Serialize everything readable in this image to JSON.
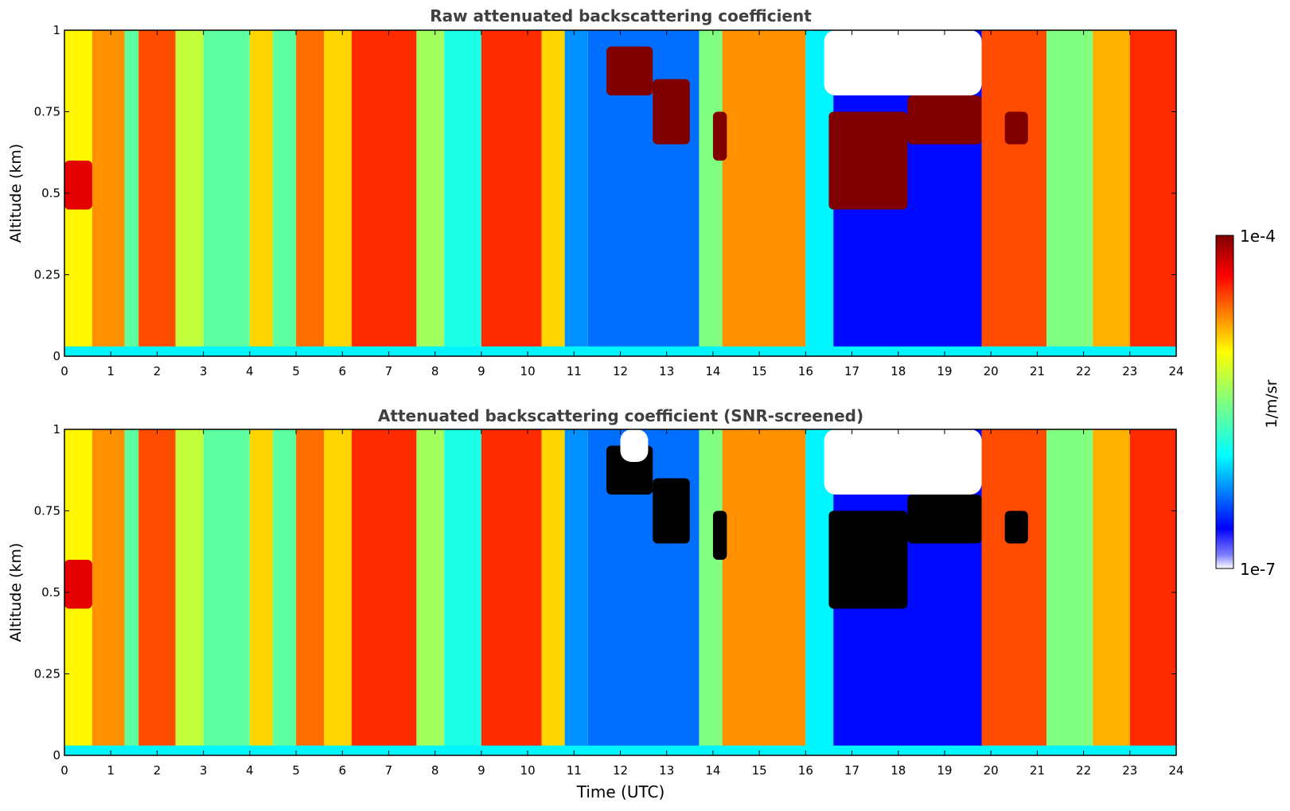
{
  "chart_data": {
    "type": "heatmap",
    "colorbar": {
      "label": "1/m/sr",
      "min_label": "1e-7",
      "max_label": "1e-4",
      "min": 1e-07,
      "max": 0.0001,
      "scale": "log",
      "colormap": "jet"
    },
    "xlabel": "Time (UTC)",
    "x_ticks": [
      "0",
      "1",
      "2",
      "3",
      "4",
      "5",
      "6",
      "7",
      "8",
      "9",
      "10",
      "11",
      "12",
      "13",
      "14",
      "15",
      "16",
      "17",
      "18",
      "19",
      "20",
      "21",
      "22",
      "23",
      "24"
    ],
    "y_ticks": [
      "0",
      "0.25",
      "0.5",
      "0.75",
      "1"
    ],
    "xlim": [
      0,
      24
    ],
    "ylim": [
      0,
      1
    ],
    "panels": [
      {
        "title": "Raw attenuated backscattering coefficient",
        "ylabel": "Altitude (km)",
        "screened": false
      },
      {
        "title": "Attenuated backscattering coefficient (SNR-screened)",
        "ylabel": "Altitude (km)",
        "screened": true
      }
    ],
    "time_bands_log10": [
      {
        "t0": 0.0,
        "t1": 0.6,
        "v": -5.1
      },
      {
        "t0": 0.6,
        "t1": 1.3,
        "v": -4.8
      },
      {
        "t0": 1.3,
        "t1": 1.6,
        "v": -5.6
      },
      {
        "t0": 1.6,
        "t1": 2.4,
        "v": -4.6
      },
      {
        "t0": 2.4,
        "t1": 3.0,
        "v": -5.3
      },
      {
        "t0": 3.0,
        "t1": 4.0,
        "v": -5.6
      },
      {
        "t0": 4.0,
        "t1": 4.5,
        "v": -5.0
      },
      {
        "t0": 4.5,
        "t1": 5.0,
        "v": -5.6
      },
      {
        "t0": 5.0,
        "t1": 5.6,
        "v": -4.7
      },
      {
        "t0": 5.6,
        "t1": 6.2,
        "v": -5.0
      },
      {
        "t0": 6.2,
        "t1": 7.6,
        "v": -4.5
      },
      {
        "t0": 7.6,
        "t1": 8.2,
        "v": -5.4
      },
      {
        "t0": 8.2,
        "t1": 9.0,
        "v": -5.8
      },
      {
        "t0": 9.0,
        "t1": 10.3,
        "v": -4.5
      },
      {
        "t0": 10.3,
        "t1": 10.8,
        "v": -5.0
      },
      {
        "t0": 10.8,
        "t1": 11.3,
        "v": -6.2
      },
      {
        "t0": 11.3,
        "t1": 13.7,
        "v": -6.3
      },
      {
        "t0": 13.7,
        "t1": 14.2,
        "v": -5.5
      },
      {
        "t0": 14.2,
        "t1": 16.0,
        "v": -4.8
      },
      {
        "t0": 16.0,
        "t1": 16.6,
        "v": -5.9
      },
      {
        "t0": 16.6,
        "t1": 19.8,
        "v": -6.6
      },
      {
        "t0": 19.8,
        "t1": 21.2,
        "v": -4.6
      },
      {
        "t0": 21.2,
        "t1": 22.2,
        "v": -5.5
      },
      {
        "t0": 22.2,
        "t1": 23.0,
        "v": -4.9
      },
      {
        "t0": 23.0,
        "t1": 24.0,
        "v": -4.5
      }
    ],
    "surface_layer": {
      "altitude_top_km": 0.03,
      "log10": -5.9
    },
    "cloud_regions": [
      {
        "t0": 11.7,
        "t1": 12.7,
        "alt0_km": 0.8,
        "alt1_km": 0.95,
        "log10": -4.0
      },
      {
        "t0": 12.7,
        "t1": 13.5,
        "alt0_km": 0.65,
        "alt1_km": 0.85,
        "log10": -4.0
      },
      {
        "t0": 14.0,
        "t1": 14.3,
        "alt0_km": 0.6,
        "alt1_km": 0.75,
        "log10": -4.0
      },
      {
        "t0": 16.5,
        "t1": 18.2,
        "alt0_km": 0.45,
        "alt1_km": 0.75,
        "log10": -4.0
      },
      {
        "t0": 18.2,
        "t1": 19.8,
        "alt0_km": 0.65,
        "alt1_km": 0.8,
        "log10": -4.0
      },
      {
        "t0": 20.3,
        "t1": 20.8,
        "alt0_km": 0.65,
        "alt1_km": 0.75,
        "log10": -4.0
      },
      {
        "t0": 0.0,
        "t1": 0.6,
        "alt0_km": 0.45,
        "alt1_km": 0.6,
        "log10": -4.3
      }
    ],
    "missing_regions_raw": [
      {
        "t0": 16.4,
        "t1": 19.8,
        "alt0_km": 0.8,
        "alt1_km": 1.0
      }
    ],
    "missing_regions_screened": [
      {
        "t0": 16.4,
        "t1": 19.8,
        "alt0_km": 0.8,
        "alt1_km": 1.0
      },
      {
        "t0": 12.0,
        "t1": 12.6,
        "alt0_km": 0.9,
        "alt1_km": 1.0
      }
    ]
  }
}
